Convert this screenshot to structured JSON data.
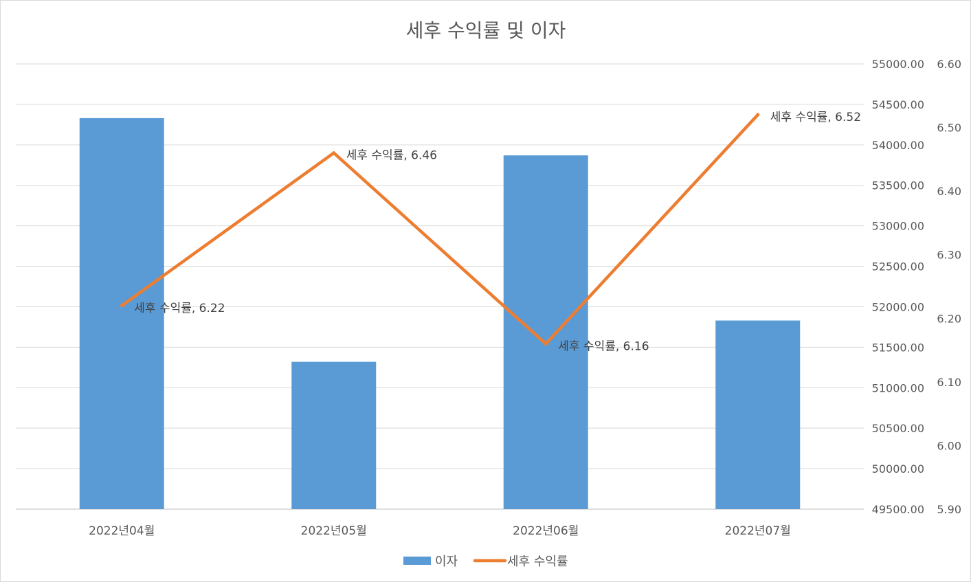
{
  "chart_data": {
    "type": "bar",
    "title": "세후 수익률 및 이자",
    "categories": [
      "2022년04월",
      "2022년05월",
      "2022년06월",
      "2022년07월"
    ],
    "series": [
      {
        "name": "이자",
        "type": "bar",
        "axis": "primary",
        "color": "#5B9BD5",
        "values": [
          54330,
          51320,
          53870,
          51830
        ]
      },
      {
        "name": "세후 수익률",
        "type": "line",
        "axis": "secondary",
        "color": "#ED7D31",
        "values": [
          6.22,
          6.46,
          6.16,
          6.52
        ],
        "data_labels": [
          "세후 수익률, 6.22",
          "세후 수익률, 6.46",
          "세후 수익률, 6.16",
          "세후 수익률, 6.52"
        ]
      }
    ],
    "primary_axis": {
      "ylim": [
        49500,
        55000
      ],
      "ticks": [
        "49500.00",
        "50000.00",
        "50500.00",
        "51000.00",
        "51500.00",
        "52000.00",
        "52500.00",
        "53000.00",
        "53500.00",
        "54000.00",
        "54500.00",
        "55000.00"
      ]
    },
    "secondary_axis": {
      "ylim": [
        5.9,
        6.6
      ],
      "ticks": [
        "5.90",
        "6.00",
        "6.10",
        "6.20",
        "6.30",
        "6.40",
        "6.50",
        "6.60"
      ]
    },
    "grid": true,
    "legend": {
      "position": "bottom",
      "entries": [
        "이자",
        "세후 수익률"
      ]
    }
  }
}
